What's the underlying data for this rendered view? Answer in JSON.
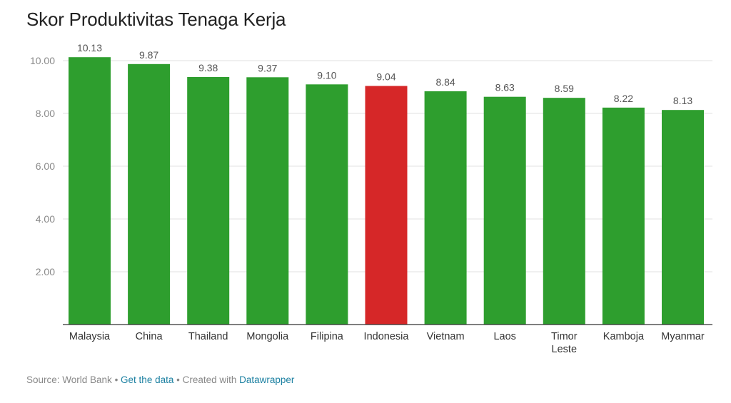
{
  "title": "Skor Produktivitas Tenaga Kerja",
  "footer": {
    "source": "Source: World Bank",
    "sep1": " • ",
    "get_data": "Get the data",
    "sep2": " • Created with ",
    "datawrapper": "Datawrapper"
  },
  "colors": {
    "bar": "#2e9e2e",
    "highlight": "#d62728",
    "grid": "#e0e0e0",
    "axis": "#333333"
  },
  "chart_data": {
    "type": "bar",
    "categories": [
      "Malaysia",
      "China",
      "Thailand",
      "Mongolia",
      "Filipina",
      "Indonesia",
      "Vietnam",
      "Laos",
      "Timor Leste",
      "Kamboja",
      "Myanmar"
    ],
    "values": [
      10.13,
      9.87,
      9.38,
      9.37,
      9.1,
      9.04,
      8.84,
      8.63,
      8.59,
      8.22,
      8.13
    ],
    "value_labels": [
      "10.13",
      "9.87",
      "9.38",
      "9.37",
      "9.10",
      "9.04",
      "8.84",
      "8.63",
      "8.59",
      "8.22",
      "8.13"
    ],
    "highlight": "Indonesia",
    "yticks": [
      2,
      4,
      6,
      8,
      10
    ],
    "ytick_labels": [
      "2.00",
      "4.00",
      "6.00",
      "8.00",
      "10.00"
    ],
    "ylim": [
      0,
      10.13
    ],
    "grid": true
  }
}
